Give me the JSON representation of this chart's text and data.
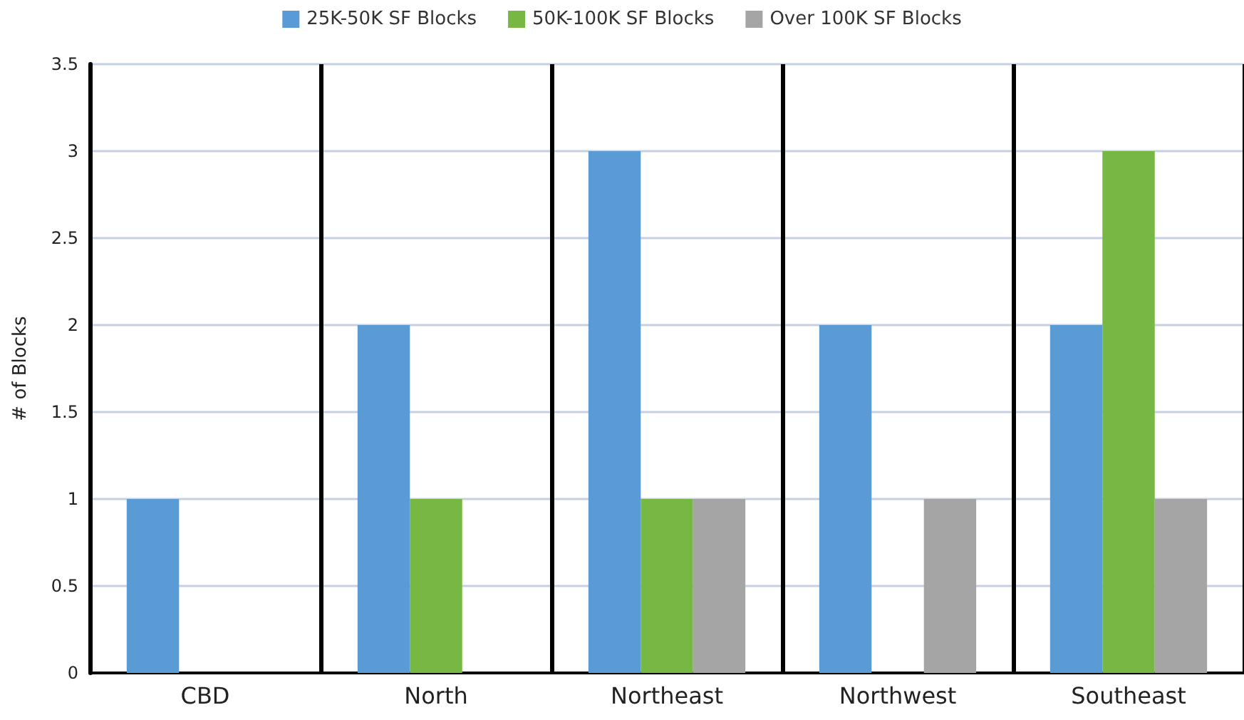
{
  "chart_data": {
    "type": "bar",
    "categories": [
      "CBD",
      "North",
      "Northeast",
      "Northwest",
      "Southeast"
    ],
    "series": [
      {
        "name": "25K-50K SF Blocks",
        "color": "#5b9bd5",
        "values": [
          1,
          2,
          3,
          2,
          2
        ]
      },
      {
        "name": "50K-100K SF Blocks",
        "color": "#76b843",
        "values": [
          0,
          1,
          1,
          0,
          3
        ]
      },
      {
        "name": "Over 100K SF Blocks",
        "color": "#a5a5a5",
        "values": [
          0,
          0,
          1,
          1,
          1
        ]
      }
    ],
    "ylabel": "# of Blocks",
    "ylim": [
      0,
      3.5
    ],
    "yticks": [
      0,
      0.5,
      1,
      1.5,
      2,
      2.5,
      3,
      3.5
    ],
    "grid": "y",
    "legend": "top"
  }
}
